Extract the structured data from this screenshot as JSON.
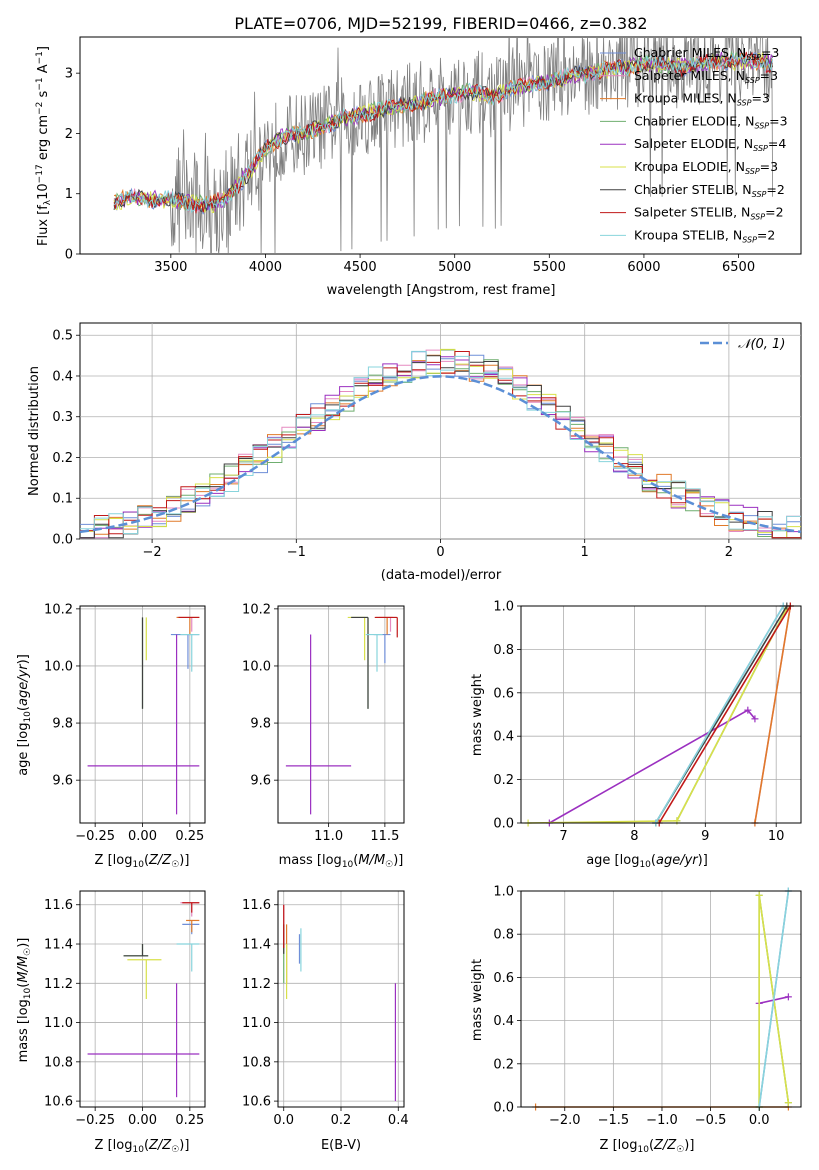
{
  "colors": {
    "Chabrier MILES": "#6f8fd8",
    "Salpeter MILES": "#e58ac0",
    "Kroupa MILES": "#e07a2a",
    "Chabrier ELODIE": "#6fae6f",
    "Salpeter ELODIE": "#9b30c0",
    "Kroupa ELODIE": "#d8e04a",
    "Chabrier STELIB": "#404040",
    "Salpeter STELIB": "#c01818",
    "Kroupa STELIB": "#88d4dc",
    "data": "#808080",
    "grid": "#b0b0b0",
    "gaussian": "#5b8fd6"
  },
  "chart_data": [
    {
      "id": "spectrum",
      "type": "line",
      "title": "PLATE=0706, MJD=52199, FIBERID=0466, z=0.382",
      "xlabel": "wavelength [Angstrom, rest frame]",
      "ylabel": "Flux [f_λ 10^-17 erg cm^-2 s^-1 A^-1]",
      "xlim": [
        3020,
        6830
      ],
      "ylim": [
        0,
        3.6
      ],
      "xticks": [
        3500,
        4000,
        4500,
        5000,
        5500,
        6000,
        6500
      ],
      "yticks": [
        0,
        1,
        2,
        3
      ],
      "grid": false,
      "legend_position": "top-right",
      "legend": [
        {
          "base": "Chabrier MILES",
          "n": "3"
        },
        {
          "base": "Salpeter MILES",
          "n": "3"
        },
        {
          "base": "Kroupa MILES",
          "n": "3"
        },
        {
          "base": "Chabrier ELODIE",
          "n": "3"
        },
        {
          "base": "Salpeter ELODIE",
          "n": "4"
        },
        {
          "base": "Kroupa ELODIE",
          "n": "3"
        },
        {
          "base": "Chabrier STELIB",
          "n": "2"
        },
        {
          "base": "Salpeter STELIB",
          "n": "2"
        },
        {
          "base": "Kroupa STELIB",
          "n": "2"
        }
      ],
      "continuum": [
        [
          3200,
          0.85
        ],
        [
          3300,
          0.95
        ],
        [
          3400,
          0.9
        ],
        [
          3500,
          0.9
        ],
        [
          3600,
          0.85
        ],
        [
          3700,
          0.8
        ],
        [
          3800,
          0.95
        ],
        [
          3900,
          1.3
        ],
        [
          4000,
          1.75
        ],
        [
          4100,
          1.95
        ],
        [
          4200,
          2.0
        ],
        [
          4300,
          2.1
        ],
        [
          4400,
          2.25
        ],
        [
          4500,
          2.3
        ],
        [
          4600,
          2.4
        ],
        [
          4700,
          2.45
        ],
        [
          4800,
          2.5
        ],
        [
          4900,
          2.6
        ],
        [
          5000,
          2.65
        ],
        [
          5100,
          2.7
        ],
        [
          5200,
          2.6
        ],
        [
          5300,
          2.75
        ],
        [
          5400,
          2.8
        ],
        [
          5500,
          2.85
        ],
        [
          5600,
          2.95
        ],
        [
          5700,
          3.0
        ],
        [
          5800,
          3.05
        ],
        [
          5900,
          3.1
        ],
        [
          6000,
          3.15
        ],
        [
          6100,
          3.15
        ],
        [
          6200,
          3.1
        ],
        [
          6300,
          3.15
        ],
        [
          6400,
          3.2
        ],
        [
          6500,
          3.2
        ],
        [
          6600,
          3.2
        ],
        [
          6680,
          3.15
        ]
      ]
    },
    {
      "id": "residuals",
      "type": "line",
      "xlabel": "(data-model)/error",
      "ylabel": "Normed distribution",
      "xlim": [
        -2.5,
        2.5
      ],
      "ylim": [
        0,
        0.53
      ],
      "xticks": [
        -2,
        -1,
        0,
        1,
        2
      ],
      "yticks": [
        0.0,
        0.1,
        0.2,
        0.3,
        0.4,
        0.5
      ],
      "grid": true,
      "legend_position": "top-right",
      "legend": [
        "𝒩(0, 1)"
      ]
    },
    {
      "id": "age-vs-z",
      "type": "scatter",
      "xlabel": "Z [log10(Z/Z☉)]",
      "ylabel": "age [log10(age/yr)]",
      "xlim": [
        -0.33,
        0.33
      ],
      "ylim": [
        9.45,
        10.21
      ],
      "xticks": [
        -0.25,
        0.0,
        0.25
      ],
      "yticks": [
        9.6,
        9.8,
        10.0,
        10.2
      ],
      "grid": true,
      "points": [
        {
          "model": "Chabrier MILES",
          "x": 0.24,
          "y": 10.11,
          "xerr": [
            0.09,
            0.06
          ],
          "yerr": [
            0.12,
            0.0
          ]
        },
        {
          "model": "Salpeter MILES",
          "x": 0.26,
          "y": 10.17,
          "xerr": [
            0.08,
            0.04
          ],
          "yerr": [
            0.05,
            0.0
          ]
        },
        {
          "model": "Kroupa MILES",
          "x": 0.25,
          "y": 10.17,
          "xerr": [
            0.07,
            0.05
          ],
          "yerr": [
            0.06,
            0.0
          ]
        },
        {
          "model": "Chabrier ELODIE",
          "x": 0.0,
          "y": 10.17,
          "xerr": [
            0.0,
            0.0
          ],
          "yerr": [
            0.32,
            0.0
          ]
        },
        {
          "model": "Salpeter ELODIE",
          "x": 0.18,
          "y": 9.65,
          "xerr": [
            0.47,
            0.12
          ],
          "yerr": [
            0.17,
            0.46
          ]
        },
        {
          "model": "Kroupa ELODIE",
          "x": 0.02,
          "y": 10.17,
          "xerr": [
            0.0,
            0.0
          ],
          "yerr": [
            0.15,
            0.0
          ]
        },
        {
          "model": "Chabrier STELIB",
          "x": 0.0,
          "y": 10.17,
          "xerr": [
            0.0,
            0.0
          ],
          "yerr": [
            0.32,
            0.0
          ]
        },
        {
          "model": "Salpeter STELIB",
          "x": 0.26,
          "y": 10.17,
          "xerr": [
            0.07,
            0.04
          ],
          "yerr": [
            0.0,
            0.0
          ]
        },
        {
          "model": "Kroupa STELIB",
          "x": 0.26,
          "y": 10.11,
          "xerr": [
            0.06,
            0.04
          ],
          "yerr": [
            0.13,
            0.0
          ]
        }
      ]
    },
    {
      "id": "age-vs-mass",
      "type": "scatter",
      "xlabel": "mass [log10(M/M☉)]",
      "ylabel": "",
      "xlim": [
        10.55,
        11.67
      ],
      "ylim": [
        9.45,
        10.21
      ],
      "xticks": [
        11.0,
        11.5
      ],
      "yticks": [
        9.6,
        9.8,
        10.0,
        10.2
      ],
      "grid": true,
      "points": [
        {
          "model": "Chabrier MILES",
          "x": 11.5,
          "y": 10.11,
          "xerr": [
            0.1,
            0.05
          ],
          "yerr": [
            0.1,
            0.0
          ]
        },
        {
          "model": "Salpeter MILES",
          "x": 11.55,
          "y": 10.17,
          "xerr": [
            0.1,
            0.05
          ],
          "yerr": [
            0.05,
            0.0
          ]
        },
        {
          "model": "Kroupa MILES",
          "x": 11.52,
          "y": 10.17,
          "xerr": [
            0.1,
            0.05
          ],
          "yerr": [
            0.06,
            0.0
          ]
        },
        {
          "model": "Chabrier ELODIE",
          "x": 11.35,
          "y": 10.17,
          "xerr": [
            0.15,
            0.0
          ],
          "yerr": [
            0.32,
            0.0
          ]
        },
        {
          "model": "Salpeter ELODIE",
          "x": 10.84,
          "y": 9.65,
          "xerr": [
            0.22,
            0.36
          ],
          "yerr": [
            0.17,
            0.46
          ]
        },
        {
          "model": "Kroupa ELODIE",
          "x": 11.32,
          "y": 10.17,
          "xerr": [
            0.15,
            0.0
          ],
          "yerr": [
            0.15,
            0.0
          ]
        },
        {
          "model": "Chabrier STELIB",
          "x": 11.35,
          "y": 10.17,
          "xerr": [
            0.15,
            0.0
          ],
          "yerr": [
            0.32,
            0.0
          ]
        },
        {
          "model": "Salpeter STELIB",
          "x": 11.61,
          "y": 10.17,
          "xerr": [
            0.2,
            0.0
          ],
          "yerr": [
            0.07,
            0.0
          ]
        },
        {
          "model": "Kroupa STELIB",
          "x": 11.43,
          "y": 10.11,
          "xerr": [
            0.1,
            0.05
          ],
          "yerr": [
            0.13,
            0.0
          ]
        }
      ]
    },
    {
      "id": "massweight-vs-age",
      "type": "line",
      "xlabel": "age [log10(age/yr)]",
      "ylabel": "mass weight",
      "xlim": [
        6.4,
        10.35
      ],
      "ylim": [
        0,
        1.0
      ],
      "xticks": [
        7,
        8,
        9,
        10
      ],
      "yticks": [
        0.0,
        0.2,
        0.4,
        0.6,
        0.8,
        1.0
      ],
      "grid": true,
      "series": [
        {
          "model": "Chabrier MILES",
          "x": [
            8.3,
            10.1
          ],
          "y": [
            0.0,
            1.0
          ]
        },
        {
          "model": "Salpeter MILES",
          "x": [
            9.7,
            10.2
          ],
          "y": [
            0.0,
            1.0
          ]
        },
        {
          "model": "Kroupa MILES",
          "x": [
            9.7,
            10.2
          ],
          "y": [
            0.0,
            1.0
          ]
        },
        {
          "model": "Chabrier ELODIE",
          "x": [
            8.6,
            10.15
          ],
          "y": [
            0.01,
            0.99
          ]
        },
        {
          "model": "Salpeter ELODIE",
          "x": [
            6.8,
            9.6,
            9.7
          ],
          "y": [
            0.0,
            0.52,
            0.48
          ]
        },
        {
          "model": "Kroupa ELODIE",
          "x": [
            6.5,
            8.6,
            10.15
          ],
          "y": [
            0.0,
            0.01,
            0.99
          ]
        },
        {
          "model": "Chabrier STELIB",
          "x": [
            8.3,
            10.15
          ],
          "y": [
            0.0,
            1.0
          ]
        },
        {
          "model": "Salpeter STELIB",
          "x": [
            8.35,
            10.2
          ],
          "y": [
            0.0,
            1.0
          ]
        },
        {
          "model": "Kroupa STELIB",
          "x": [
            8.3,
            10.1
          ],
          "y": [
            0.0,
            1.0
          ]
        }
      ]
    },
    {
      "id": "mass-vs-z",
      "type": "scatter",
      "xlabel": "Z [log10(Z/Z☉)]",
      "ylabel": "mass [log10(M/M☉)]",
      "xlim": [
        -0.33,
        0.33
      ],
      "ylim": [
        10.57,
        11.67
      ],
      "xticks": [
        -0.25,
        0.0,
        0.25
      ],
      "yticks": [
        10.6,
        10.8,
        11.0,
        11.2,
        11.4,
        11.6
      ],
      "grid": true,
      "points": [
        {
          "model": "Chabrier MILES",
          "x": 0.26,
          "y": 11.5,
          "xerr": [
            0.05,
            0.04
          ],
          "yerr": [
            0.05,
            0.0
          ]
        },
        {
          "model": "Salpeter MILES",
          "x": 0.26,
          "y": 11.61,
          "xerr": [
            0.06,
            0.04
          ],
          "yerr": [
            0.07,
            0.0
          ]
        },
        {
          "model": "Kroupa MILES",
          "x": 0.26,
          "y": 11.52,
          "xerr": [
            0.03,
            0.04
          ],
          "yerr": [
            0.06,
            0.0
          ]
        },
        {
          "model": "Chabrier ELODIE",
          "x": 0.0,
          "y": 11.34,
          "xerr": [
            0.1,
            0.03
          ],
          "yerr": [
            0.0,
            0.06
          ]
        },
        {
          "model": "Salpeter ELODIE",
          "x": 0.18,
          "y": 10.84,
          "xerr": [
            0.47,
            0.12
          ],
          "yerr": [
            0.22,
            0.36
          ]
        },
        {
          "model": "Kroupa ELODIE",
          "x": 0.02,
          "y": 11.32,
          "xerr": [
            0.1,
            0.08
          ],
          "yerr": [
            0.2,
            0.0
          ]
        },
        {
          "model": "Chabrier STELIB",
          "x": 0.0,
          "y": 11.34,
          "xerr": [
            0.1,
            0.03
          ],
          "yerr": [
            0.0,
            0.06
          ]
        },
        {
          "model": "Salpeter STELIB",
          "x": 0.26,
          "y": 11.61,
          "xerr": [
            0.05,
            0.04
          ],
          "yerr": [
            0.05,
            0.0
          ]
        },
        {
          "model": "Kroupa STELIB",
          "x": 0.26,
          "y": 11.4,
          "xerr": [
            0.08,
            0.04
          ],
          "yerr": [
            0.14,
            0.0
          ]
        }
      ]
    },
    {
      "id": "mass-vs-ebv",
      "type": "scatter",
      "xlabel": "E(B-V)",
      "ylabel": "",
      "xlim": [
        -0.02,
        0.42
      ],
      "ylim": [
        10.57,
        11.67
      ],
      "xticks": [
        0.0,
        0.2,
        0.4
      ],
      "yticks": [
        10.6,
        10.8,
        11.0,
        11.2,
        11.4,
        11.6
      ],
      "grid": true,
      "points": [
        {
          "model": "Chabrier MILES",
          "x": 0.055,
          "y": 11.4,
          "xerr": [
            0,
            0
          ],
          "yerr": [
            0.1,
            0.05
          ]
        },
        {
          "model": "Salpeter MILES",
          "x": 0.0,
          "y": 11.5,
          "xerr": [
            0,
            0
          ],
          "yerr": [
            0.1,
            0.1
          ]
        },
        {
          "model": "Kroupa MILES",
          "x": 0.01,
          "y": 11.4,
          "xerr": [
            0,
            0
          ],
          "yerr": [
            0.2,
            0.1
          ]
        },
        {
          "model": "Chabrier ELODIE",
          "x": 0.0,
          "y": 11.3,
          "xerr": [
            0,
            0
          ],
          "yerr": [
            0.1,
            0.1
          ]
        },
        {
          "model": "Salpeter ELODIE",
          "x": 0.39,
          "y": 10.9,
          "xerr": [
            0,
            0
          ],
          "yerr": [
            0.3,
            0.3
          ]
        },
        {
          "model": "Kroupa ELODIE",
          "x": 0.01,
          "y": 11.3,
          "xerr": [
            0,
            0
          ],
          "yerr": [
            0.18,
            0.1
          ]
        },
        {
          "model": "Chabrier STELIB",
          "x": 0.0,
          "y": 11.45,
          "xerr": [
            0,
            0
          ],
          "yerr": [
            0.1,
            0.05
          ]
        },
        {
          "model": "Salpeter STELIB",
          "x": 0.0,
          "y": 11.5,
          "xerr": [
            0,
            0
          ],
          "yerr": [
            0.12,
            0.1
          ]
        },
        {
          "model": "Kroupa STELIB",
          "x": 0.06,
          "y": 11.38,
          "xerr": [
            0,
            0
          ],
          "yerr": [
            0.12,
            0.1
          ]
        }
      ]
    },
    {
      "id": "massweight-vs-z",
      "type": "line",
      "xlabel": "Z [log10(Z/Z☉)]",
      "ylabel": "mass weight",
      "xlim": [
        -2.45,
        0.43
      ],
      "ylim": [
        0,
        1.0
      ],
      "xticks": [
        -2.0,
        -1.5,
        -1.0,
        -0.5,
        0.0
      ],
      "yticks": [
        0.0,
        0.2,
        0.4,
        0.6,
        0.8,
        1.0
      ],
      "grid": true,
      "series": [
        {
          "model": "Chabrier MILES",
          "x": [
            0.0,
            0.3
          ],
          "y": [
            0.0,
            1.0
          ]
        },
        {
          "model": "Kroupa MILES",
          "x": [
            -2.3,
            0.0,
            0.3
          ],
          "y": [
            0.0,
            0.0,
            0.0
          ]
        },
        {
          "model": "Chabrier ELODIE",
          "x": [
            0.0,
            0.0,
            0.3
          ],
          "y": [
            0.0,
            0.98,
            0.02
          ]
        },
        {
          "model": "Salpeter ELODIE",
          "x": [
            0.0,
            0.3
          ],
          "y": [
            0.48,
            0.51
          ]
        },
        {
          "model": "Kroupa ELODIE",
          "x": [
            0.0,
            0.0,
            0.3
          ],
          "y": [
            0.0,
            0.98,
            0.02
          ]
        },
        {
          "model": "Kroupa STELIB",
          "x": [
            0.0,
            0.3
          ],
          "y": [
            0.0,
            1.0
          ]
        }
      ]
    }
  ]
}
